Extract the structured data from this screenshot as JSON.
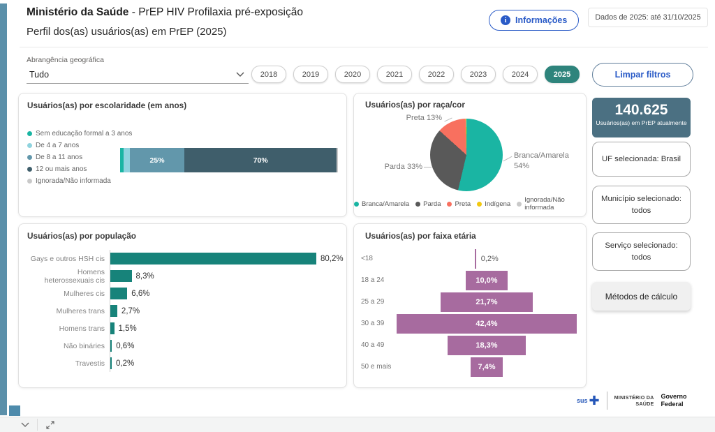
{
  "colors": {
    "accent_teal": "#1ab5a3",
    "light_cyan": "#8fd3de",
    "slate_blue": "#6297ab",
    "dark_slate": "#3f5e6b",
    "muted_gray": "#c9c9c9",
    "pie_parda_gray": "#595959",
    "pie_preta_salmon": "#f8705f",
    "pie_indigena_yellow": "#f2c80f",
    "populacao_bar_teal": "#17837a",
    "faixa_purple": "#a76b9f",
    "selected_year_teal": "#2e847c",
    "kpi_card_slate": "#4b7082",
    "brand_blue": "#2a5bc7",
    "left_stripe_blue": "#5b90aa"
  },
  "header": {
    "title_bold": "Ministério da Saúde",
    "title_rest": " - PrEP HIV Profilaxia pré-exposição",
    "subtitle": "Perfil dos(as) usuários(as) em PrEP (2025)",
    "info_button": "Informações",
    "data_note": "Dados de 2025: até 31/10/2025"
  },
  "filters": {
    "geo_label": "Abrangência geográfica",
    "geo_value": "Tudo",
    "years": [
      "2018",
      "2019",
      "2020",
      "2021",
      "2022",
      "2023",
      "2024",
      "2025"
    ],
    "selected_year": "2025",
    "clear_button": "Limpar filtros"
  },
  "kpi": {
    "value": "140.625",
    "label": "Usuários(as) em PrEP atualmente"
  },
  "side_cards": [
    "UF selecionada: Brasil",
    "Município selecionado: todos",
    "Serviço selecionado: todos"
  ],
  "methods_button": "Métodos de cálculo",
  "footer": {
    "sus_label": "sus",
    "ministry_l1": "MINISTÉRIO DA",
    "ministry_l2": "SAÚDE",
    "gov_l1": "Governo",
    "gov_l2": "Federal"
  },
  "chart_data": [
    {
      "id": "escolaridade",
      "type": "bar",
      "subtype": "stacked-horizontal",
      "title": "Usuários(as) por escolaridade (em anos)",
      "categories": [
        "Sem educação formal a 3 anos",
        "De 4 a 7 anos",
        "De 8 a 11 anos",
        "12 ou mais anos",
        "Ignorada/Não informada"
      ],
      "values": [
        1.5,
        3,
        25,
        70,
        0.5
      ],
      "labels_shown": [
        "",
        "",
        "25%",
        "70%",
        ""
      ],
      "colors": [
        "#1ab5a3",
        "#8fd3de",
        "#6297ab",
        "#3f5e6b",
        "#c9c9c9"
      ],
      "xlim": [
        0,
        100
      ],
      "legend_position": "left"
    },
    {
      "id": "raca_cor",
      "type": "pie",
      "title": "Usuários(as) por raça/cor",
      "categories": [
        "Branca/Amarela",
        "Parda",
        "Preta",
        "Indígena",
        "Ignorada/Não informada"
      ],
      "values": [
        53.7,
        33,
        12.9,
        0.3,
        0.1
      ],
      "colors": [
        "#1ab5a3",
        "#595959",
        "#f8705f",
        "#f2c80f",
        "#c9c9c9"
      ],
      "callout_preta": "Preta 13%",
      "callout_parda": "Parda 33%",
      "callout_branca_l1": "Branca/Amarela",
      "callout_branca_l2": "54%",
      "legend_position": "bottom"
    },
    {
      "id": "populacao",
      "type": "bar",
      "subtype": "horizontal",
      "title": "Usuários(as) por população",
      "categories": [
        "Gays e outros HSH cis",
        "Homens heterossexuais cis",
        "Mulheres cis",
        "Mulheres trans",
        "Homens trans",
        "Não bináries",
        "Travestis"
      ],
      "values": [
        80.2,
        8.3,
        6.6,
        2.7,
        1.5,
        0.6,
        0.2
      ],
      "labels": [
        "80,2%",
        "8,3%",
        "6,6%",
        "2,7%",
        "1,5%",
        "0,6%",
        "0,2%"
      ],
      "color": "#17837a",
      "xlim": [
        0,
        82
      ]
    },
    {
      "id": "faixa_etaria",
      "type": "bar",
      "subtype": "centered-funnel",
      "title": "Usuários(as) por faixa etária",
      "categories": [
        "<18",
        "18 a 24",
        "25 a 29",
        "30 a 39",
        "40 a 49",
        "50 e mais"
      ],
      "values": [
        0.2,
        10.0,
        21.7,
        42.4,
        18.3,
        7.4
      ],
      "labels": [
        "0,2%",
        "10,0%",
        "21,7%",
        "42,4%",
        "18,3%",
        "7,4%"
      ],
      "color": "#a76b9f",
      "xlim": [
        0,
        42.4
      ]
    }
  ]
}
